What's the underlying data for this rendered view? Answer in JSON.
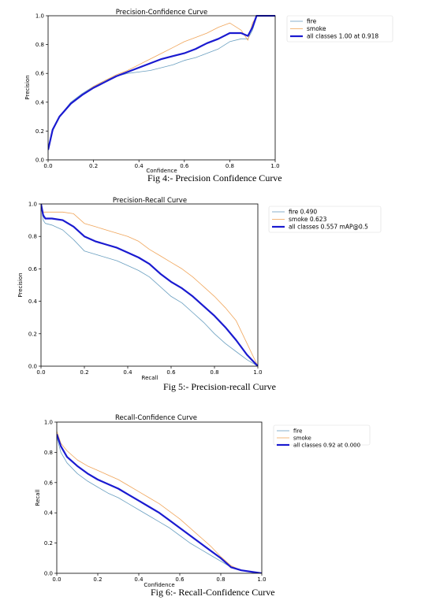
{
  "colors": {
    "fire": "#6a9fc0",
    "smoke": "#f0a55a",
    "all": "#1a1ad0",
    "axis": "#000000"
  },
  "figures": [
    {
      "caption": "Fig 4:- Precision Confidence Curve"
    },
    {
      "caption": "Fig 5:- Precision-recall Curve"
    },
    {
      "caption": "Fig 6:- Recall-Confidence Curve"
    }
  ],
  "chart_data": [
    {
      "type": "line",
      "title": "Precision-Confidence Curve",
      "xlabel": "Confidence",
      "ylabel": "Precision",
      "xlim": [
        0,
        1
      ],
      "ylim": [
        0,
        1
      ],
      "xticks": [
        "0.0",
        "0.2",
        "0.4",
        "0.6",
        "0.8",
        "1.0"
      ],
      "yticks": [
        "0.0",
        "0.2",
        "0.4",
        "0.6",
        "0.8",
        "1.0"
      ],
      "grid": false,
      "legend": "top-right",
      "series": [
        {
          "name": "fire",
          "color": "fire",
          "width": 0.8,
          "x": [
            0,
            0.02,
            0.05,
            0.1,
            0.15,
            0.2,
            0.25,
            0.3,
            0.35,
            0.4,
            0.45,
            0.5,
            0.55,
            0.6,
            0.65,
            0.7,
            0.75,
            0.8,
            0.85,
            0.88,
            0.9,
            0.92,
            1.0
          ],
          "y": [
            0.07,
            0.2,
            0.3,
            0.4,
            0.46,
            0.51,
            0.55,
            0.58,
            0.6,
            0.61,
            0.62,
            0.64,
            0.66,
            0.69,
            0.71,
            0.74,
            0.77,
            0.82,
            0.84,
            0.84,
            0.9,
            1.0,
            1.0
          ]
        },
        {
          "name": "smoke",
          "color": "smoke",
          "width": 0.8,
          "x": [
            0,
            0.02,
            0.05,
            0.1,
            0.15,
            0.2,
            0.25,
            0.3,
            0.35,
            0.4,
            0.45,
            0.5,
            0.55,
            0.6,
            0.65,
            0.7,
            0.75,
            0.8,
            0.85,
            0.88,
            0.9,
            0.92,
            1.0
          ],
          "y": [
            0.07,
            0.21,
            0.3,
            0.39,
            0.45,
            0.51,
            0.55,
            0.59,
            0.62,
            0.66,
            0.7,
            0.74,
            0.78,
            0.82,
            0.85,
            0.88,
            0.92,
            0.95,
            0.9,
            0.83,
            0.95,
            1.0,
            1.0
          ]
        },
        {
          "name": "all classes 1.00 at 0.918",
          "color": "all",
          "width": 2.2,
          "x": [
            0,
            0.02,
            0.05,
            0.1,
            0.15,
            0.2,
            0.25,
            0.3,
            0.35,
            0.4,
            0.45,
            0.5,
            0.55,
            0.6,
            0.65,
            0.7,
            0.75,
            0.8,
            0.85,
            0.88,
            0.9,
            0.918,
            1.0
          ],
          "y": [
            0.07,
            0.21,
            0.3,
            0.39,
            0.45,
            0.5,
            0.54,
            0.58,
            0.61,
            0.64,
            0.67,
            0.7,
            0.72,
            0.74,
            0.77,
            0.81,
            0.84,
            0.88,
            0.88,
            0.86,
            0.92,
            1.0,
            1.0
          ]
        }
      ]
    },
    {
      "type": "line",
      "title": "Precision-Recall Curve",
      "xlabel": "Recall",
      "ylabel": "Precision",
      "xlim": [
        0,
        1
      ],
      "ylim": [
        0,
        1
      ],
      "xticks": [
        "0.0",
        "0.2",
        "0.4",
        "0.6",
        "0.8",
        "1.0"
      ],
      "yticks": [
        "0.0",
        "0.2",
        "0.4",
        "0.6",
        "0.8",
        "1.0"
      ],
      "grid": false,
      "legend": "outside-right",
      "series": [
        {
          "name": "fire 0.490",
          "color": "fire",
          "width": 0.8,
          "x": [
            0,
            0.01,
            0.02,
            0.05,
            0.1,
            0.15,
            0.2,
            0.25,
            0.3,
            0.35,
            0.4,
            0.45,
            0.5,
            0.55,
            0.6,
            0.65,
            0.7,
            0.75,
            0.8,
            0.85,
            0.9,
            0.95,
            1.0
          ],
          "y": [
            1.0,
            0.9,
            0.88,
            0.87,
            0.84,
            0.78,
            0.71,
            0.69,
            0.67,
            0.65,
            0.62,
            0.59,
            0.55,
            0.49,
            0.43,
            0.39,
            0.33,
            0.27,
            0.2,
            0.14,
            0.09,
            0.04,
            0.0
          ]
        },
        {
          "name": "smoke 0.623",
          "color": "smoke",
          "width": 0.8,
          "x": [
            0,
            0.01,
            0.02,
            0.05,
            0.1,
            0.15,
            0.2,
            0.25,
            0.3,
            0.35,
            0.4,
            0.45,
            0.5,
            0.55,
            0.6,
            0.65,
            0.7,
            0.75,
            0.8,
            0.85,
            0.9,
            0.95,
            1.0
          ],
          "y": [
            1.0,
            0.95,
            0.95,
            0.95,
            0.95,
            0.94,
            0.88,
            0.86,
            0.84,
            0.82,
            0.8,
            0.77,
            0.72,
            0.68,
            0.64,
            0.6,
            0.55,
            0.49,
            0.43,
            0.36,
            0.28,
            0.14,
            0.0
          ]
        },
        {
          "name": "all classes 0.557 mAP@0.5",
          "color": "all",
          "width": 2.2,
          "x": [
            0,
            0.01,
            0.02,
            0.05,
            0.1,
            0.15,
            0.2,
            0.25,
            0.3,
            0.35,
            0.4,
            0.45,
            0.5,
            0.55,
            0.6,
            0.65,
            0.7,
            0.75,
            0.8,
            0.85,
            0.9,
            0.95,
            1.0
          ],
          "y": [
            1.0,
            0.93,
            0.91,
            0.91,
            0.9,
            0.86,
            0.8,
            0.77,
            0.75,
            0.73,
            0.7,
            0.67,
            0.63,
            0.57,
            0.52,
            0.48,
            0.43,
            0.37,
            0.31,
            0.24,
            0.16,
            0.07,
            0.0
          ]
        }
      ]
    },
    {
      "type": "line",
      "title": "Recall-Confidence Curve",
      "xlabel": "Confidence",
      "ylabel": "Recall",
      "xlim": [
        0,
        1
      ],
      "ylim": [
        0,
        1
      ],
      "xticks": [
        "0.0",
        "0.2",
        "0.4",
        "0.6",
        "0.8",
        "1.0"
      ],
      "yticks": [
        "0.0",
        "0.2",
        "0.4",
        "0.6",
        "0.8",
        "1.0"
      ],
      "grid": false,
      "legend": "outside-right",
      "series": [
        {
          "name": "fire",
          "color": "fire",
          "width": 0.8,
          "x": [
            0,
            0.02,
            0.05,
            0.1,
            0.15,
            0.2,
            0.25,
            0.3,
            0.35,
            0.4,
            0.45,
            0.5,
            0.55,
            0.6,
            0.65,
            0.7,
            0.75,
            0.8,
            0.85,
            0.9,
            0.95,
            1.0
          ],
          "y": [
            0.9,
            0.8,
            0.73,
            0.66,
            0.61,
            0.57,
            0.53,
            0.5,
            0.46,
            0.42,
            0.38,
            0.34,
            0.3,
            0.25,
            0.2,
            0.16,
            0.12,
            0.08,
            0.04,
            0.02,
            0.01,
            0.0
          ]
        },
        {
          "name": "smoke",
          "color": "smoke",
          "width": 0.8,
          "x": [
            0,
            0.02,
            0.05,
            0.1,
            0.15,
            0.2,
            0.25,
            0.3,
            0.35,
            0.4,
            0.45,
            0.5,
            0.55,
            0.6,
            0.65,
            0.7,
            0.75,
            0.8,
            0.85,
            0.9,
            0.95,
            1.0
          ],
          "y": [
            0.94,
            0.86,
            0.81,
            0.75,
            0.71,
            0.68,
            0.65,
            0.62,
            0.58,
            0.54,
            0.5,
            0.46,
            0.41,
            0.36,
            0.3,
            0.24,
            0.18,
            0.11,
            0.05,
            0.02,
            0.01,
            0.0
          ]
        },
        {
          "name": "all classes 0.92 at 0.000",
          "color": "all",
          "width": 2.2,
          "x": [
            0,
            0.02,
            0.05,
            0.1,
            0.15,
            0.2,
            0.25,
            0.3,
            0.35,
            0.4,
            0.45,
            0.5,
            0.55,
            0.6,
            0.65,
            0.7,
            0.75,
            0.8,
            0.85,
            0.9,
            0.95,
            1.0
          ],
          "y": [
            0.92,
            0.84,
            0.77,
            0.71,
            0.66,
            0.62,
            0.59,
            0.56,
            0.52,
            0.48,
            0.44,
            0.4,
            0.35,
            0.3,
            0.25,
            0.2,
            0.15,
            0.1,
            0.04,
            0.02,
            0.01,
            0.0
          ]
        }
      ]
    }
  ]
}
